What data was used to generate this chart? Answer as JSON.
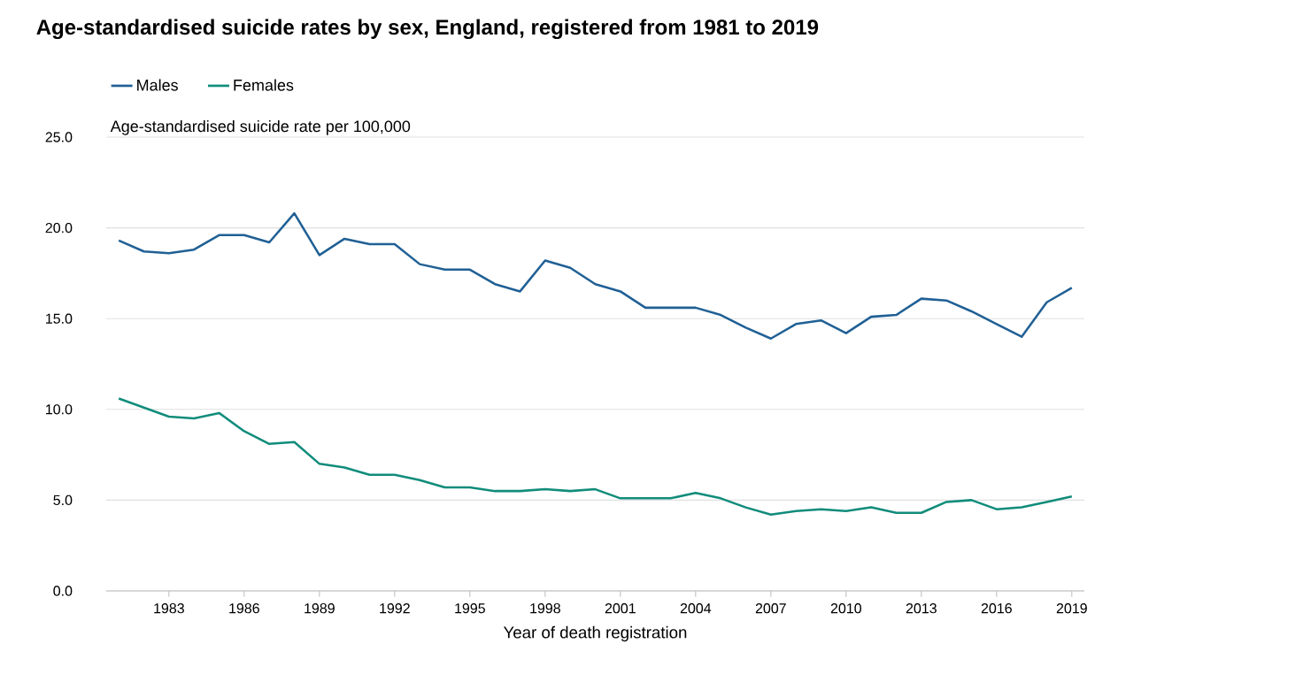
{
  "chart_data": {
    "type": "line",
    "title": "Age-standardised suicide rates by sex, England, registered from 1981 to 2019",
    "xlabel": "Year of death registration",
    "ylabel": "Age-standardised suicide rate per 100,000",
    "x": [
      1981,
      1982,
      1983,
      1984,
      1985,
      1986,
      1987,
      1988,
      1989,
      1990,
      1991,
      1992,
      1993,
      1994,
      1995,
      1996,
      1997,
      1998,
      1999,
      2000,
      2001,
      2002,
      2003,
      2004,
      2005,
      2006,
      2007,
      2008,
      2009,
      2010,
      2011,
      2012,
      2013,
      2014,
      2015,
      2016,
      2017,
      2018,
      2019
    ],
    "series": [
      {
        "name": "Males",
        "color": "#206095",
        "values": [
          19.3,
          18.7,
          18.6,
          18.8,
          19.6,
          19.6,
          19.2,
          20.8,
          18.5,
          19.4,
          19.1,
          19.1,
          18.0,
          17.7,
          17.7,
          16.9,
          16.5,
          18.2,
          17.8,
          16.9,
          16.5,
          15.6,
          15.6,
          15.6,
          15.2,
          14.5,
          13.9,
          14.7,
          14.9,
          14.2,
          15.1,
          15.2,
          16.1,
          16.0,
          15.4,
          14.7,
          14.0,
          15.9,
          16.7
        ]
      },
      {
        "name": "Females",
        "color": "#118c7b",
        "values": [
          10.6,
          10.1,
          9.6,
          9.5,
          9.8,
          8.8,
          8.1,
          8.2,
          7.0,
          6.8,
          6.4,
          6.4,
          6.1,
          5.7,
          5.7,
          5.5,
          5.5,
          5.6,
          5.5,
          5.6,
          5.1,
          5.1,
          5.1,
          5.4,
          5.1,
          4.6,
          4.2,
          4.4,
          4.5,
          4.4,
          4.6,
          4.3,
          4.3,
          4.9,
          5.0,
          4.5,
          4.6,
          4.9,
          5.2
        ]
      }
    ],
    "xlim": [
      1980.5,
      2019.5
    ],
    "xticks": [
      1983,
      1986,
      1989,
      1992,
      1995,
      1998,
      2001,
      2004,
      2007,
      2010,
      2013,
      2016,
      2019
    ],
    "ylim": [
      0,
      25
    ],
    "yticks": [
      {
        "value": 0,
        "label": "0.0"
      },
      {
        "value": 5,
        "label": "5.0"
      },
      {
        "value": 10,
        "label": "10.0"
      },
      {
        "value": 15,
        "label": "15.0"
      },
      {
        "value": 20,
        "label": "20.0"
      },
      {
        "value": 25,
        "label": "25.0"
      }
    ],
    "grid": "y",
    "legend": "top left"
  }
}
